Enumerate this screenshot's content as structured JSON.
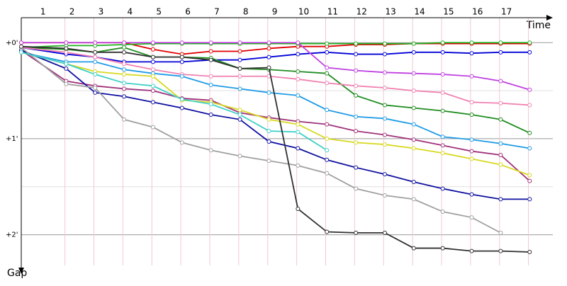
{
  "chart_data": {
    "type": "line",
    "x_label": "Time",
    "y_label": "Gap",
    "x": [
      0.25,
      1.8,
      2.8,
      3.8,
      4.8,
      5.8,
      6.8,
      7.8,
      8.8,
      9.8,
      10.8,
      11.8,
      12.8,
      13.8,
      14.8,
      15.8,
      16.8,
      17.8
    ],
    "xlim": [
      0.25,
      18.6
    ],
    "xticks": [
      1,
      2,
      3,
      4,
      5,
      6,
      7,
      8,
      9,
      10,
      11,
      12,
      13,
      14,
      15,
      16,
      17
    ],
    "ylim": [
      -0.26,
      2.32
    ],
    "yticks": [
      {
        "value": 0,
        "label": "+0'"
      },
      {
        "value": 1,
        "label": "+1'"
      },
      {
        "value": 2,
        "label": "+2'"
      }
    ],
    "minor_yticks": [
      0.5,
      1.5
    ],
    "grid": true,
    "series": [
      {
        "name": "red",
        "color": "#e00000",
        "values": [
          0,
          0,
          0,
          0,
          0.07,
          0.12,
          0.09,
          0.09,
          0.06,
          0.04,
          0.04,
          0.02,
          0.02,
          0.01,
          0.01,
          0.01,
          0.01,
          0.01
        ]
      },
      {
        "name": "green",
        "color": "#20b020",
        "values": [
          0.05,
          0.03,
          0.03,
          0.02,
          0.01,
          0.01,
          0.01,
          0.01,
          0.01,
          0.01,
          0.01,
          0.01,
          0.01,
          0.01,
          0,
          0,
          0,
          0
        ]
      },
      {
        "name": "blue",
        "color": "#0000d8",
        "values": [
          0.05,
          0.12,
          0.15,
          0.2,
          0.2,
          0.2,
          0.18,
          0.18,
          0.15,
          0.12,
          0.1,
          0.12,
          0.12,
          0.1,
          0.1,
          0.11,
          0.1,
          0.1
        ]
      },
      {
        "name": "violet",
        "color": "#c040e0",
        "values": [
          0,
          0,
          0,
          0,
          0,
          0,
          0,
          0,
          0,
          0,
          0.26,
          0.29,
          0.31,
          0.32,
          0.33,
          0.35,
          0.4,
          0.49
        ]
      },
      {
        "name": "darkgreen",
        "color": "#208c20",
        "values": [
          0.05,
          0.07,
          0.1,
          0.05,
          0.15,
          0.15,
          0.16,
          0.27,
          0.28,
          0.3,
          0.32,
          0.55,
          0.65,
          0.68,
          0.71,
          0.75,
          0.8,
          0.94
        ]
      },
      {
        "name": "pink",
        "color": "#f080b0",
        "values": [
          0.05,
          0.1,
          0.15,
          0.22,
          0.28,
          0.33,
          0.35,
          0.35,
          0.35,
          0.38,
          0.42,
          0.45,
          0.47,
          0.5,
          0.52,
          0.62,
          0.63,
          0.65
        ]
      },
      {
        "name": "sky",
        "color": "#1e9be6",
        "values": [
          0.1,
          0.2,
          0.2,
          0.28,
          0.32,
          0.35,
          0.44,
          0.48,
          0.52,
          0.55,
          0.7,
          0.77,
          0.79,
          0.85,
          0.98,
          1.01,
          1.05,
          1.1
        ]
      },
      {
        "name": "purple",
        "color": "#a0307a",
        "values": [
          0.08,
          0.4,
          0.45,
          0.48,
          0.5,
          0.58,
          0.6,
          0.73,
          0.78,
          0.82,
          0.85,
          0.92,
          0.96,
          1.01,
          1.07,
          1.13,
          1.17,
          1.44
        ]
      },
      {
        "name": "yellow",
        "color": "#d8d820",
        "values": [
          0.1,
          0.22,
          0.3,
          0.33,
          0.35,
          0.6,
          0.62,
          0.7,
          0.8,
          0.85,
          1.0,
          1.04,
          1.06,
          1.1,
          1.15,
          1.21,
          1.27,
          1.38
        ]
      },
      {
        "name": "navy",
        "color": "#1010a0",
        "values": [
          0.08,
          0.27,
          0.52,
          0.56,
          0.62,
          0.68,
          0.75,
          0.8,
          1.03,
          1.1,
          1.22,
          1.3,
          1.37,
          1.45,
          1.52,
          1.58,
          1.63,
          1.63
        ]
      },
      {
        "name": "grey",
        "color": "#a0a0a0",
        "values": [
          0.05,
          0.43,
          0.47,
          0.8,
          0.88,
          1.04,
          1.12,
          1.18,
          1.23,
          1.28,
          1.36,
          1.52,
          1.59,
          1.63,
          1.76,
          1.82,
          1.98,
          null
        ]
      },
      {
        "name": "teal",
        "color": "#40d0c8",
        "values": [
          0.1,
          0.22,
          0.33,
          0.42,
          0.45,
          0.59,
          0.64,
          0.75,
          0.92,
          0.93,
          1.12,
          null,
          null,
          null,
          null,
          null,
          null,
          null
        ]
      },
      {
        "name": "black",
        "color": "#303030",
        "values": [
          0.04,
          0.06,
          0.1,
          0.1,
          0.15,
          0.15,
          0.18,
          0.27,
          0.26,
          1.73,
          1.97,
          1.98,
          1.98,
          2.14,
          2.14,
          2.17,
          2.17,
          2.18
        ]
      }
    ]
  }
}
